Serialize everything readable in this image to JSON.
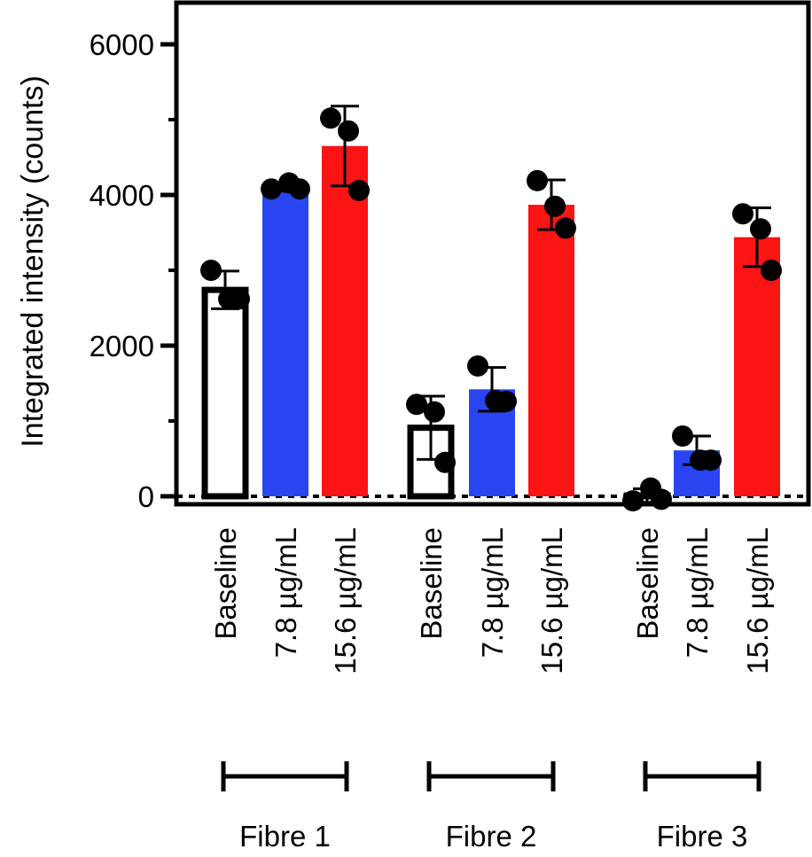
{
  "chart_data": {
    "type": "bar",
    "title": "",
    "xlabel": "",
    "ylabel": "Integrated intensity (counts)",
    "ylim": [
      -100,
      6600
    ],
    "yticks": [
      0,
      2000,
      4000,
      6000
    ],
    "yticks_labels": [
      "0",
      "2000",
      "4000",
      "6000"
    ],
    "grid": false,
    "baseline_dashed": true,
    "colors": {
      "baseline": "#ffffff",
      "low": "#2945f2",
      "high": "#fa1414",
      "outline": "#000000"
    },
    "groups": [
      {
        "name": "Fibre 1",
        "bars": [
          {
            "label": "Baseline",
            "value": 2740,
            "sd": 250,
            "color_key": "baseline",
            "points": [
              3000,
              2620,
              2620
            ]
          },
          {
            "label": "7.8 µg/mL",
            "value": 4100,
            "sd": 50,
            "color_key": "low",
            "points": [
              4080,
              4160,
              4080
            ]
          },
          {
            "label": "15.6 µg/mL",
            "value": 4650,
            "sd": 530,
            "color_key": "high",
            "points": [
              5020,
              4850,
              4060
            ]
          }
        ]
      },
      {
        "name": "Fibre 2",
        "bars": [
          {
            "label": "Baseline",
            "value": 910,
            "sd": 420,
            "color_key": "baseline",
            "points": [
              1220,
              1120,
              450
            ]
          },
          {
            "label": "7.8 µg/mL",
            "value": 1420,
            "sd": 290,
            "color_key": "low",
            "points": [
              1730,
              1270,
              1260
            ]
          },
          {
            "label": "15.6 µg/mL",
            "value": 3870,
            "sd": 330,
            "color_key": "high",
            "points": [
              4190,
              3850,
              3560
            ]
          }
        ]
      },
      {
        "name": "Fibre 3",
        "bars": [
          {
            "label": "Baseline",
            "value": 10,
            "sd": 90,
            "color_key": "baseline",
            "points": [
              -60,
              110,
              -40
            ]
          },
          {
            "label": "7.8 µg/mL",
            "value": 610,
            "sd": 190,
            "color_key": "low",
            "points": [
              800,
              480,
              480
            ]
          },
          {
            "label": "15.6 µg/mL",
            "value": 3440,
            "sd": 390,
            "color_key": "high",
            "points": [
              3750,
              3550,
              3000
            ]
          }
        ]
      }
    ]
  }
}
